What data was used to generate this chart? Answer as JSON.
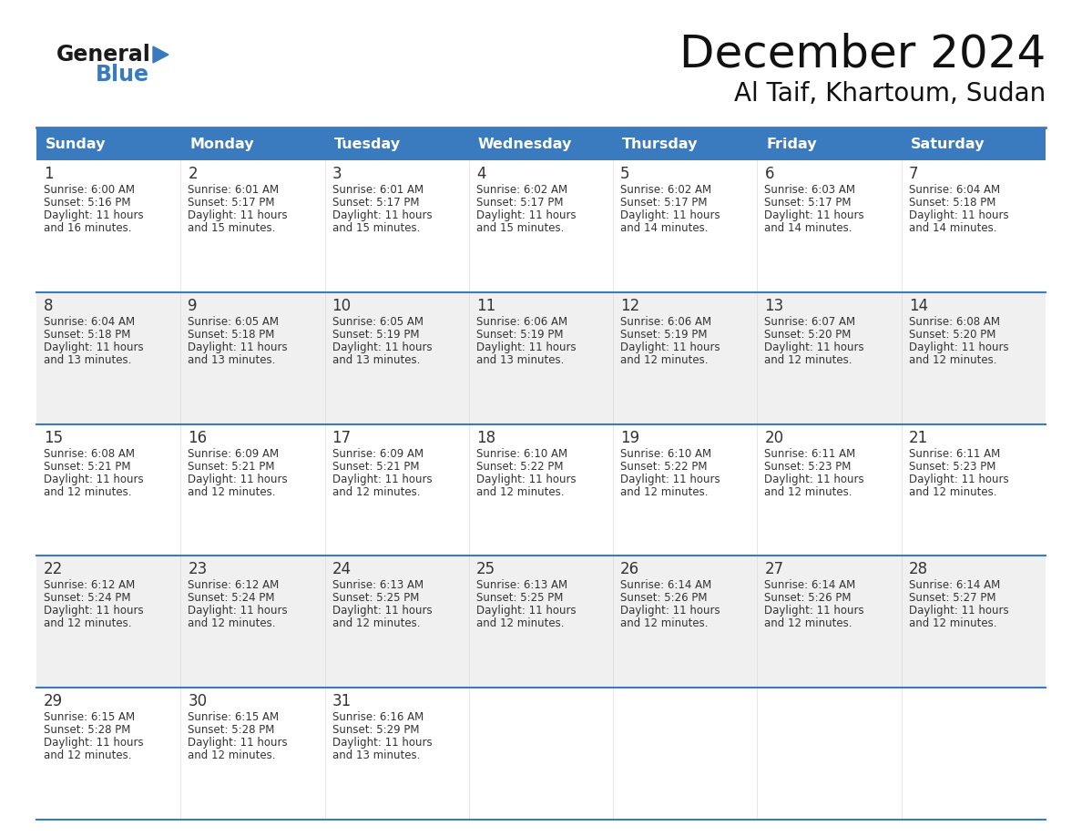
{
  "title": "December 2024",
  "subtitle": "Al Taif, Khartoum, Sudan",
  "header_color": "#3a7abf",
  "header_text_color": "#ffffff",
  "days_of_week": [
    "Sunday",
    "Monday",
    "Tuesday",
    "Wednesday",
    "Thursday",
    "Friday",
    "Saturday"
  ],
  "bg_color": "#ffffff",
  "cell_bg_even": "#ffffff",
  "cell_bg_odd": "#f0f0f0",
  "divider_color": "#3a7abf",
  "text_color": "#333333",
  "border_color": "#cccccc",
  "calendar_data": [
    [
      {
        "day": 1,
        "sunrise": "6:00 AM",
        "sunset": "5:16 PM",
        "daylight_hours": 11,
        "daylight_minutes": 16
      },
      {
        "day": 2,
        "sunrise": "6:01 AM",
        "sunset": "5:17 PM",
        "daylight_hours": 11,
        "daylight_minutes": 15
      },
      {
        "day": 3,
        "sunrise": "6:01 AM",
        "sunset": "5:17 PM",
        "daylight_hours": 11,
        "daylight_minutes": 15
      },
      {
        "day": 4,
        "sunrise": "6:02 AM",
        "sunset": "5:17 PM",
        "daylight_hours": 11,
        "daylight_minutes": 15
      },
      {
        "day": 5,
        "sunrise": "6:02 AM",
        "sunset": "5:17 PM",
        "daylight_hours": 11,
        "daylight_minutes": 14
      },
      {
        "day": 6,
        "sunrise": "6:03 AM",
        "sunset": "5:17 PM",
        "daylight_hours": 11,
        "daylight_minutes": 14
      },
      {
        "day": 7,
        "sunrise": "6:04 AM",
        "sunset": "5:18 PM",
        "daylight_hours": 11,
        "daylight_minutes": 14
      }
    ],
    [
      {
        "day": 8,
        "sunrise": "6:04 AM",
        "sunset": "5:18 PM",
        "daylight_hours": 11,
        "daylight_minutes": 13
      },
      {
        "day": 9,
        "sunrise": "6:05 AM",
        "sunset": "5:18 PM",
        "daylight_hours": 11,
        "daylight_minutes": 13
      },
      {
        "day": 10,
        "sunrise": "6:05 AM",
        "sunset": "5:19 PM",
        "daylight_hours": 11,
        "daylight_minutes": 13
      },
      {
        "day": 11,
        "sunrise": "6:06 AM",
        "sunset": "5:19 PM",
        "daylight_hours": 11,
        "daylight_minutes": 13
      },
      {
        "day": 12,
        "sunrise": "6:06 AM",
        "sunset": "5:19 PM",
        "daylight_hours": 11,
        "daylight_minutes": 12
      },
      {
        "day": 13,
        "sunrise": "6:07 AM",
        "sunset": "5:20 PM",
        "daylight_hours": 11,
        "daylight_minutes": 12
      },
      {
        "day": 14,
        "sunrise": "6:08 AM",
        "sunset": "5:20 PM",
        "daylight_hours": 11,
        "daylight_minutes": 12
      }
    ],
    [
      {
        "day": 15,
        "sunrise": "6:08 AM",
        "sunset": "5:21 PM",
        "daylight_hours": 11,
        "daylight_minutes": 12
      },
      {
        "day": 16,
        "sunrise": "6:09 AM",
        "sunset": "5:21 PM",
        "daylight_hours": 11,
        "daylight_minutes": 12
      },
      {
        "day": 17,
        "sunrise": "6:09 AM",
        "sunset": "5:21 PM",
        "daylight_hours": 11,
        "daylight_minutes": 12
      },
      {
        "day": 18,
        "sunrise": "6:10 AM",
        "sunset": "5:22 PM",
        "daylight_hours": 11,
        "daylight_minutes": 12
      },
      {
        "day": 19,
        "sunrise": "6:10 AM",
        "sunset": "5:22 PM",
        "daylight_hours": 11,
        "daylight_minutes": 12
      },
      {
        "day": 20,
        "sunrise": "6:11 AM",
        "sunset": "5:23 PM",
        "daylight_hours": 11,
        "daylight_minutes": 12
      },
      {
        "day": 21,
        "sunrise": "6:11 AM",
        "sunset": "5:23 PM",
        "daylight_hours": 11,
        "daylight_minutes": 12
      }
    ],
    [
      {
        "day": 22,
        "sunrise": "6:12 AM",
        "sunset": "5:24 PM",
        "daylight_hours": 11,
        "daylight_minutes": 12
      },
      {
        "day": 23,
        "sunrise": "6:12 AM",
        "sunset": "5:24 PM",
        "daylight_hours": 11,
        "daylight_minutes": 12
      },
      {
        "day": 24,
        "sunrise": "6:13 AM",
        "sunset": "5:25 PM",
        "daylight_hours": 11,
        "daylight_minutes": 12
      },
      {
        "day": 25,
        "sunrise": "6:13 AM",
        "sunset": "5:25 PM",
        "daylight_hours": 11,
        "daylight_minutes": 12
      },
      {
        "day": 26,
        "sunrise": "6:14 AM",
        "sunset": "5:26 PM",
        "daylight_hours": 11,
        "daylight_minutes": 12
      },
      {
        "day": 27,
        "sunrise": "6:14 AM",
        "sunset": "5:26 PM",
        "daylight_hours": 11,
        "daylight_minutes": 12
      },
      {
        "day": 28,
        "sunrise": "6:14 AM",
        "sunset": "5:27 PM",
        "daylight_hours": 11,
        "daylight_minutes": 12
      }
    ],
    [
      {
        "day": 29,
        "sunrise": "6:15 AM",
        "sunset": "5:28 PM",
        "daylight_hours": 11,
        "daylight_minutes": 12
      },
      {
        "day": 30,
        "sunrise": "6:15 AM",
        "sunset": "5:28 PM",
        "daylight_hours": 11,
        "daylight_minutes": 12
      },
      {
        "day": 31,
        "sunrise": "6:16 AM",
        "sunset": "5:29 PM",
        "daylight_hours": 11,
        "daylight_minutes": 13
      },
      null,
      null,
      null,
      null
    ]
  ]
}
